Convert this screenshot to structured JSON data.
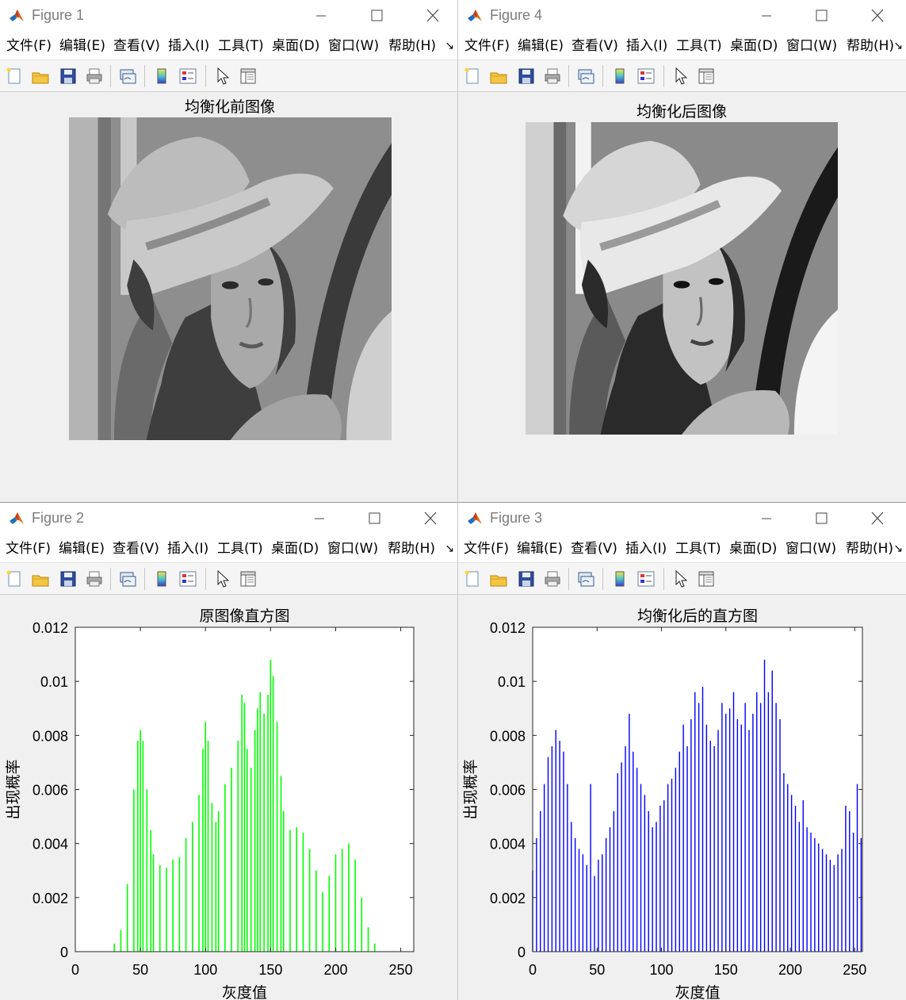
{
  "menu_items": [
    "文件(F)",
    "编辑(E)",
    "查看(V)",
    "插入(I)",
    "工具(T)",
    "桌面(D)",
    "窗口(W)",
    "帮助(H)"
  ],
  "menu_more": "↘",
  "windows": {
    "fig1": {
      "title": "Figure 1",
      "axes_title": "均衡化前图像"
    },
    "fig4": {
      "title": "Figure 4",
      "axes_title": "均衡化后图像"
    },
    "fig2": {
      "title": "Figure 2",
      "axes_title": "原图像直方图"
    },
    "fig3": {
      "title": "Figure 3",
      "axes_title": "均衡化后的直方图"
    }
  },
  "toolbar_icons": [
    "new-figure-icon",
    "open-file-icon",
    "save-icon",
    "print-icon",
    "link-plot-icon",
    "colorbar-icon",
    "legend-icon",
    "edit-plot-arrow-icon",
    "property-inspector-icon"
  ],
  "chart_data": [
    {
      "type": "bar",
      "title": "原图像直方图",
      "xlabel": "灰度值",
      "ylabel": "出现概率",
      "xlim": [
        0,
        260
      ],
      "ylim": [
        0,
        0.012
      ],
      "xticks": [
        0,
        50,
        100,
        150,
        200,
        250
      ],
      "yticks": [
        0,
        0.002,
        0.004,
        0.006,
        0.008,
        0.01,
        0.012
      ],
      "ytick_labels": [
        "0",
        "0.002",
        "0.004",
        "0.006",
        "0.008",
        "0.01",
        "0.012"
      ],
      "color": "#00ff00",
      "x": [
        25,
        30,
        35,
        40,
        45,
        48,
        50,
        52,
        55,
        58,
        60,
        65,
        70,
        75,
        80,
        85,
        90,
        95,
        98,
        100,
        102,
        105,
        108,
        110,
        115,
        120,
        125,
        128,
        130,
        132,
        135,
        138,
        140,
        142,
        145,
        148,
        150,
        152,
        155,
        158,
        160,
        165,
        170,
        175,
        180,
        185,
        190,
        195,
        200,
        205,
        210,
        215,
        220,
        225,
        230,
        235
      ],
      "values": [
        0.0,
        0.0003,
        0.0008,
        0.0025,
        0.006,
        0.0078,
        0.0082,
        0.0078,
        0.006,
        0.0045,
        0.0036,
        0.0032,
        0.0031,
        0.0034,
        0.0035,
        0.0042,
        0.0048,
        0.0058,
        0.0075,
        0.0085,
        0.0078,
        0.0055,
        0.0048,
        0.0052,
        0.0062,
        0.0068,
        0.0078,
        0.0095,
        0.0092,
        0.0075,
        0.0068,
        0.0082,
        0.009,
        0.0096,
        0.0088,
        0.0095,
        0.0108,
        0.0102,
        0.0085,
        0.0065,
        0.0052,
        0.0045,
        0.0046,
        0.0044,
        0.0038,
        0.003,
        0.0022,
        0.0028,
        0.0036,
        0.0038,
        0.004,
        0.0034,
        0.002,
        0.0009,
        0.0003,
        0.0
      ]
    },
    {
      "type": "bar",
      "title": "均衡化后的直方图",
      "xlabel": "灰度值",
      "ylabel": "出现概率",
      "xlim": [
        0,
        256
      ],
      "ylim": [
        0,
        0.012
      ],
      "xticks": [
        0,
        50,
        100,
        150,
        200,
        250
      ],
      "yticks": [
        0,
        0.002,
        0.004,
        0.006,
        0.008,
        0.01,
        0.012
      ],
      "ytick_labels": [
        "0",
        "0.002",
        "0.004",
        "0.006",
        "0.008",
        "0.01",
        "0.012"
      ],
      "color": "#0000ff",
      "x": [
        0,
        3,
        6,
        9,
        12,
        15,
        18,
        21,
        24,
        27,
        30,
        33,
        36,
        39,
        42,
        45,
        48,
        51,
        54,
        57,
        60,
        63,
        66,
        69,
        72,
        75,
        78,
        81,
        84,
        87,
        90,
        93,
        96,
        99,
        102,
        105,
        108,
        111,
        114,
        117,
        120,
        123,
        126,
        129,
        132,
        135,
        138,
        141,
        144,
        147,
        150,
        153,
        156,
        159,
        162,
        165,
        168,
        171,
        174,
        177,
        180,
        183,
        186,
        189,
        192,
        195,
        198,
        201,
        204,
        207,
        210,
        213,
        216,
        219,
        222,
        225,
        228,
        231,
        234,
        237,
        240,
        243,
        246,
        249,
        252,
        255
      ],
      "values": [
        0.003,
        0.0042,
        0.0052,
        0.0062,
        0.0072,
        0.0076,
        0.0082,
        0.0078,
        0.0074,
        0.0062,
        0.0048,
        0.0042,
        0.0038,
        0.0036,
        0.0032,
        0.0062,
        0.0028,
        0.0034,
        0.0036,
        0.0042,
        0.0046,
        0.0052,
        0.0066,
        0.007,
        0.0076,
        0.0088,
        0.0074,
        0.0068,
        0.0062,
        0.0058,
        0.0052,
        0.0046,
        0.0048,
        0.0054,
        0.0056,
        0.0062,
        0.0064,
        0.0068,
        0.0074,
        0.0084,
        0.0076,
        0.0086,
        0.0096,
        0.0092,
        0.0098,
        0.0084,
        0.0078,
        0.0076,
        0.0082,
        0.0092,
        0.0088,
        0.009,
        0.0096,
        0.0086,
        0.0084,
        0.0092,
        0.0082,
        0.0088,
        0.0096,
        0.0092,
        0.0108,
        0.0096,
        0.0104,
        0.0092,
        0.0086,
        0.0066,
        0.0062,
        0.0058,
        0.0054,
        0.0048,
        0.0056,
        0.0046,
        0.0044,
        0.0042,
        0.004,
        0.0038,
        0.0036,
        0.0034,
        0.0032,
        0.0036,
        0.0038,
        0.0054,
        0.0052,
        0.0044,
        0.0062,
        0.0042
      ]
    }
  ]
}
